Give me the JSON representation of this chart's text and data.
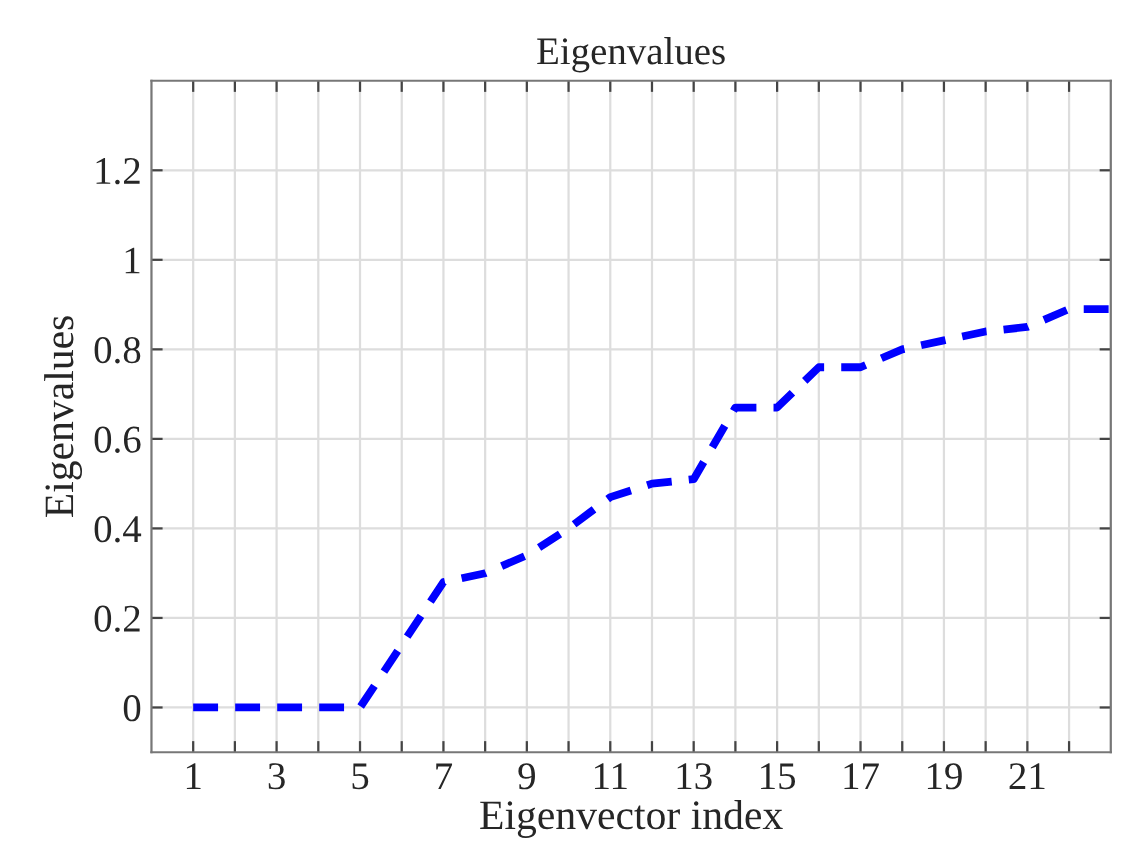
{
  "chart_data": {
    "type": "line",
    "title": "Eigenvalues",
    "xlabel": "Eigenvector index",
    "ylabel": "Eigenvalues",
    "x": [
      1,
      2,
      3,
      4,
      5,
      6,
      7,
      8,
      9,
      10,
      11,
      12,
      13,
      14,
      15,
      16,
      17,
      18,
      19,
      20,
      21,
      22,
      23
    ],
    "series": [
      {
        "color": "#0000ff",
        "line_style": "dashed",
        "values": [
          0,
          0,
          0,
          0,
          0,
          0.14,
          0.28,
          0.3,
          0.34,
          0.4,
          0.47,
          0.5,
          0.51,
          0.67,
          0.67,
          0.76,
          0.76,
          0.8,
          0.82,
          0.84,
          0.85,
          0.89,
          0.89
        ]
      }
    ],
    "xlim": [
      0,
      23
    ],
    "ylim": [
      -0.1,
      1.4
    ],
    "xticks": [
      1,
      {
        "value": 2,
        "label": null
      },
      3,
      {
        "value": 4,
        "label": null
      },
      5,
      {
        "value": 6,
        "label": null
      },
      7,
      {
        "value": 8,
        "label": null
      },
      9,
      {
        "value": 10,
        "label": null
      },
      11,
      {
        "value": 12,
        "label": null
      },
      13,
      {
        "value": 14,
        "label": null
      },
      15,
      {
        "value": 16,
        "label": null
      },
      17,
      {
        "value": 18,
        "label": null
      },
      19,
      {
        "value": 20,
        "label": null
      },
      21,
      {
        "value": 22,
        "label": null
      }
    ],
    "yticks": [
      0,
      0.2,
      0.4,
      0.6,
      0.8,
      1,
      1.2
    ],
    "grid": true,
    "marker": "none"
  }
}
